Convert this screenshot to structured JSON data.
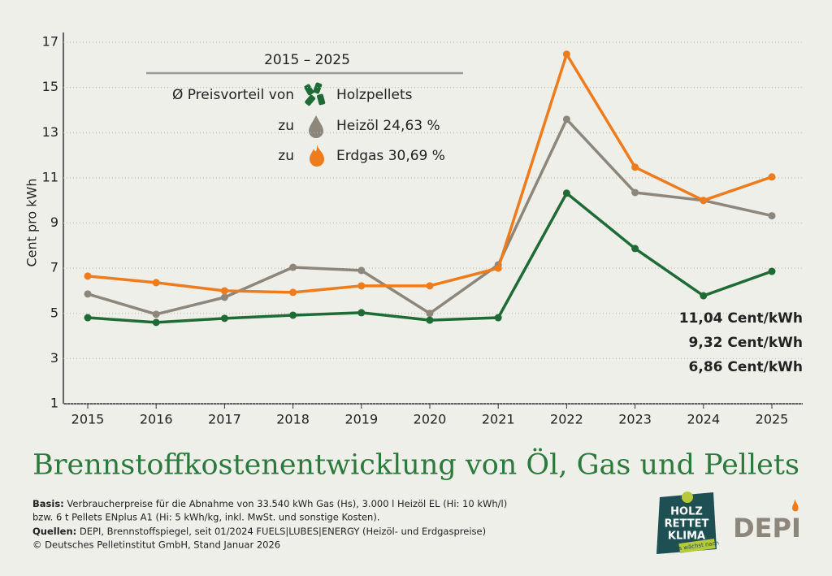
{
  "chart_data": {
    "type": "line",
    "title": "Brennstoffkostenentwicklung von Öl, Gas und Pellets",
    "y_label": "Cent pro kWh",
    "categories": [
      "2015",
      "2016",
      "2017",
      "2018",
      "2019",
      "2020",
      "2021",
      "2022",
      "2023",
      "2024",
      "2025"
    ],
    "series": [
      {
        "color": "#8c877a",
        "values": [
          5.86,
          4.96,
          5.71,
          7.04,
          6.9,
          5.0,
          7.15,
          13.59,
          10.35,
          10.0,
          9.32
        ],
        "end_label": "9,32 Cent/kWh"
      },
      {
        "color": "#1f6b35",
        "values": [
          4.81,
          4.6,
          4.78,
          4.92,
          5.03,
          4.7,
          4.81,
          10.32,
          7.87,
          5.78,
          6.86
        ],
        "end_label": "6,86 Cent/kWh"
      },
      {
        "color": "#ee7b1c",
        "values": [
          6.65,
          6.36,
          6.0,
          5.93,
          6.22,
          6.22,
          7.0,
          16.47,
          11.47,
          10.0,
          11.04
        ],
        "end_label": "11,04 Cent/kWh"
      }
    ],
    "ylim": [
      1,
      17
    ],
    "yticks": [
      1,
      3,
      5,
      7,
      9,
      11,
      13,
      15,
      17
    ],
    "grid": true,
    "annotation": {
      "header": "2015 – 2025",
      "intro": "Ø Preisvorteil von",
      "base": "Holzpellets",
      "rows": [
        {
          "prefix": "zu",
          "label": "Heizöl 24,63 %"
        },
        {
          "prefix": "zu",
          "label": "Erdgas 30,69 %"
        }
      ]
    }
  },
  "footer": [
    {
      "bold": "Basis:",
      "text": " Verbraucherpreise für die Abnahme von 33.540 kWh Gas (Hs), 3.000 l Heizöl EL (Hi: 10 kWh/l)"
    },
    {
      "text": "bzw. 6 t Pellets ENplus A1 (Hi: 5 kWh/kg, inkl. MwSt. und sonstige Kosten)."
    },
    {
      "bold": "Quellen:",
      "text": " DEPI, Brennstoffspiegel, seit 01/2024 FUELS|LUBES|ENERGY (Heizöl- und Erdgaspreise)"
    },
    {
      "text": "© Deutsches Pelletinstitut GmbH, Stand Januar 2026"
    }
  ],
  "logos": {
    "campaign": [
      "HOLZ",
      "RETTET",
      "KLIMA"
    ],
    "campaign_tag": "Es wächst nach",
    "brand": "DEPI"
  }
}
